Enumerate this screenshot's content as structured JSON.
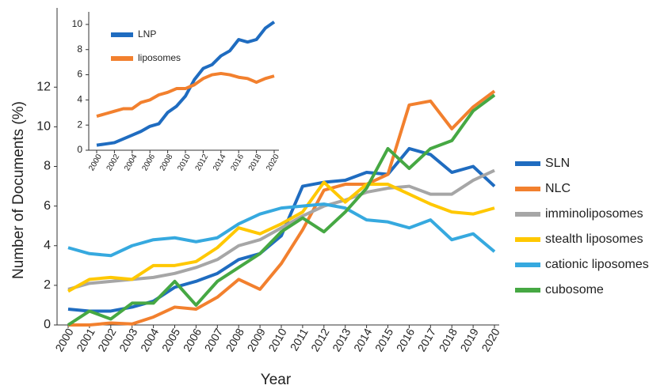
{
  "chart_data": [
    {
      "type": "line",
      "y_label": "Number of Documents (%)",
      "x_label": "Year",
      "x": [
        2000,
        2001,
        2002,
        2003,
        2004,
        2005,
        2006,
        2007,
        2008,
        2009,
        2010,
        2011,
        2012,
        2013,
        2014,
        2015,
        2016,
        2017,
        2018,
        2019,
        2020
      ],
      "xlim": [
        2000,
        2020
      ],
      "xticks": [
        2000,
        2001,
        2002,
        2003,
        2004,
        2005,
        2006,
        2007,
        2008,
        2009,
        2010,
        2011,
        2012,
        2013,
        2014,
        2015,
        2016,
        2017,
        2018,
        2019,
        2020
      ],
      "ylim": [
        0,
        16
      ],
      "yticks": [
        0,
        2,
        4,
        6,
        8,
        10,
        12
      ],
      "grid": false,
      "legend": "right",
      "series": [
        {
          "name": "SLN",
          "color": "#1f6cc0",
          "values": [
            0.8,
            0.7,
            0.7,
            0.9,
            1.2,
            1.9,
            2.2,
            2.6,
            3.3,
            3.6,
            4.5,
            7.0,
            7.2,
            7.3,
            7.7,
            7.6,
            8.9,
            8.6,
            7.7,
            8.0,
            7.0
          ]
        },
        {
          "name": "NLC",
          "color": "#f2802e",
          "values": [
            0,
            0,
            0.1,
            0.05,
            0.4,
            0.9,
            0.8,
            1.4,
            2.3,
            1.8,
            3.1,
            4.8,
            6.8,
            7.1,
            7.1,
            7.6,
            11.1,
            11.3,
            9.9,
            11.0,
            11.8
          ]
        },
        {
          "name": "imminoliposomes",
          "color": "#a6a6a6",
          "values": [
            1.8,
            2.1,
            2.2,
            2.3,
            2.4,
            2.6,
            2.9,
            3.3,
            4.0,
            4.3,
            4.9,
            5.5,
            6.0,
            6.3,
            6.7,
            6.9,
            7.0,
            6.6,
            6.6,
            7.3,
            7.8
          ]
        },
        {
          "name": "stealth liposomes",
          "color": "#ffc800",
          "values": [
            1.7,
            2.3,
            2.4,
            2.3,
            3.0,
            3.0,
            3.2,
            3.9,
            4.9,
            4.6,
            5.1,
            5.7,
            7.2,
            6.2,
            7.1,
            7.1,
            6.6,
            6.1,
            5.7,
            5.6,
            5.9
          ]
        },
        {
          "name": "cationic liposomes",
          "color": "#36a9df",
          "values": [
            3.9,
            3.6,
            3.5,
            4.0,
            4.3,
            4.4,
            4.2,
            4.4,
            5.1,
            5.6,
            5.9,
            6.0,
            6.1,
            5.9,
            5.3,
            5.2,
            4.9,
            5.3,
            4.3,
            4.6,
            3.7
          ]
        },
        {
          "name": "cubosome",
          "color": "#46a843",
          "values": [
            0,
            0.7,
            0.3,
            1.1,
            1.1,
            2.2,
            1.0,
            2.2,
            2.9,
            3.6,
            4.7,
            5.4,
            4.7,
            5.7,
            6.9,
            8.9,
            7.9,
            8.9,
            9.3,
            10.8,
            11.6
          ]
        }
      ]
    },
    {
      "type": "line",
      "x": [
        2000,
        2001,
        2002,
        2003,
        2004,
        2005,
        2006,
        2007,
        2008,
        2009,
        2010,
        2011,
        2012,
        2013,
        2014,
        2015,
        2016,
        2017,
        2018,
        2019,
        2020
      ],
      "xlim": [
        2000,
        2020
      ],
      "xticks": [
        2000,
        2002,
        2004,
        2006,
        2008,
        2010,
        2012,
        2014,
        2016,
        2018,
        2020
      ],
      "ylim": [
        0,
        11
      ],
      "yticks": [
        0,
        2,
        4,
        6,
        8,
        10
      ],
      "grid": false,
      "legend": "upper left",
      "series": [
        {
          "name": "LNP",
          "color": "#1f6cc0",
          "values": [
            0.4,
            0.5,
            0.6,
            0.9,
            1.2,
            1.5,
            1.9,
            2.1,
            3.0,
            3.5,
            4.3,
            5.6,
            6.5,
            6.8,
            7.5,
            7.9,
            8.8,
            8.6,
            8.8,
            9.7,
            10.2
          ]
        },
        {
          "name": "liposomes",
          "color": "#f2802e",
          "values": [
            2.7,
            2.9,
            3.1,
            3.3,
            3.3,
            3.8,
            4.0,
            4.4,
            4.6,
            4.9,
            4.9,
            5.2,
            5.7,
            6.0,
            6.1,
            6.0,
            5.8,
            5.7,
            5.4,
            5.7,
            5.9
          ]
        }
      ]
    }
  ]
}
